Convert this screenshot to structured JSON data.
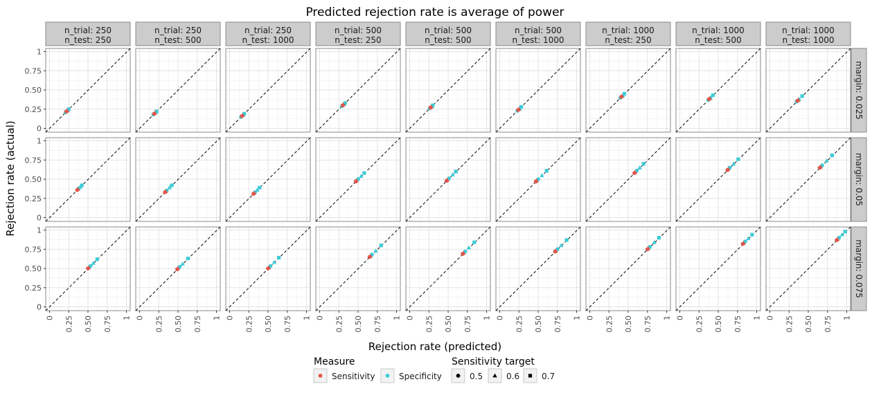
{
  "chart_data": {
    "type": "scatter",
    "title": "Predicted rejection rate is average of power",
    "xlabel": "Rejection rate (predicted)",
    "ylabel": "Rejection rate (actual)",
    "xlim": [
      0,
      1
    ],
    "ylim": [
      0,
      1
    ],
    "x_ticks": [
      "0",
      "0.25",
      "0.50",
      "0.75",
      "1"
    ],
    "y_ticks": [
      "0",
      "0.25",
      "0.50",
      "0.75",
      "1"
    ],
    "grid": true,
    "reference_line": "y = x (dashed)",
    "facet_columns": [
      [
        "n_trial: 250",
        "n_test: 250"
      ],
      [
        "n_trial: 250",
        "n_test: 500"
      ],
      [
        "n_trial: 250",
        "n_test: 1000"
      ],
      [
        "n_trial: 500",
        "n_test: 250"
      ],
      [
        "n_trial: 500",
        "n_test: 500"
      ],
      [
        "n_trial: 500",
        "n_test: 1000"
      ],
      [
        "n_trial: 1000",
        "n_test: 250"
      ],
      [
        "n_trial: 1000",
        "n_test: 500"
      ],
      [
        "n_trial: 1000",
        "n_test: 1000"
      ]
    ],
    "facet_rows": [
      "margin: 0.025",
      "margin: 0.05",
      "margin: 0.075"
    ],
    "legend": {
      "placement": "bottom",
      "measure_title": "Measure",
      "measure_items": [
        {
          "label": "Sensitivity",
          "color": "#E0564B"
        },
        {
          "label": "Specificity",
          "color": "#3DCCD8"
        }
      ],
      "target_title": "Sensitivity target",
      "target_items": [
        {
          "label": "0.5",
          "shape": "circle"
        },
        {
          "label": "0.6",
          "shape": "triangle"
        },
        {
          "label": "0.7",
          "shape": "square"
        }
      ]
    },
    "panels": [
      [
        {
          "sens": [
            0.22,
            0.23
          ],
          "spec": [
            0.21,
            0.24,
            0.25
          ]
        },
        {
          "sens": [
            0.19,
            0.2
          ],
          "spec": [
            0.18,
            0.21,
            0.22
          ]
        },
        {
          "sens": [
            0.16,
            0.17
          ],
          "spec": [
            0.15,
            0.18,
            0.19
          ]
        },
        {
          "sens": [
            0.3,
            0.31
          ],
          "spec": [
            0.29,
            0.32,
            0.33
          ]
        },
        {
          "sens": [
            0.27,
            0.28
          ],
          "spec": [
            0.26,
            0.29,
            0.3
          ]
        },
        {
          "sens": [
            0.24,
            0.25
          ],
          "spec": [
            0.23,
            0.26,
            0.28
          ]
        },
        {
          "sens": [
            0.41,
            0.42
          ],
          "spec": [
            0.4,
            0.43,
            0.45
          ]
        },
        {
          "sens": [
            0.38,
            0.39
          ],
          "spec": [
            0.37,
            0.4,
            0.43
          ]
        },
        {
          "sens": [
            0.36,
            0.37
          ],
          "spec": [
            0.35,
            0.38,
            0.42
          ]
        }
      ],
      [
        {
          "sens": [
            0.36,
            0.37
          ],
          "spec": [
            0.38,
            0.4,
            0.42
          ]
        },
        {
          "sens": [
            0.33,
            0.34
          ],
          "spec": [
            0.35,
            0.39,
            0.42
          ]
        },
        {
          "sens": [
            0.31,
            0.32
          ],
          "spec": [
            0.33,
            0.36,
            0.39
          ]
        },
        {
          "sens": [
            0.47,
            0.48
          ],
          "spec": [
            0.5,
            0.54,
            0.58
          ]
        },
        {
          "sens": [
            0.48,
            0.49
          ],
          "spec": [
            0.51,
            0.56,
            0.6
          ]
        },
        {
          "sens": [
            0.47,
            0.48
          ],
          "spec": [
            0.5,
            0.55,
            0.61
          ]
        },
        {
          "sens": [
            0.58,
            0.59
          ],
          "spec": [
            0.61,
            0.65,
            0.7
          ]
        },
        {
          "sens": [
            0.62,
            0.63
          ],
          "spec": [
            0.65,
            0.7,
            0.76
          ]
        },
        {
          "sens": [
            0.65,
            0.66
          ],
          "spec": [
            0.68,
            0.74,
            0.81
          ]
        }
      ],
      [
        {
          "sens": [
            0.5,
            0.51
          ],
          "spec": [
            0.53,
            0.57,
            0.62
          ]
        },
        {
          "sens": [
            0.49,
            0.5
          ],
          "spec": [
            0.52,
            0.56,
            0.63
          ]
        },
        {
          "sens": [
            0.5,
            0.51
          ],
          "spec": [
            0.53,
            0.58,
            0.64
          ]
        },
        {
          "sens": [
            0.65,
            0.66
          ],
          "spec": [
            0.68,
            0.73,
            0.8
          ]
        },
        {
          "sens": [
            0.69,
            0.7
          ],
          "spec": [
            0.72,
            0.77,
            0.84
          ]
        },
        {
          "sens": [
            0.72,
            0.73
          ],
          "spec": [
            0.75,
            0.8,
            0.87
          ]
        },
        {
          "sens": [
            0.75,
            0.76
          ],
          "spec": [
            0.78,
            0.84,
            0.9
          ]
        },
        {
          "sens": [
            0.82,
            0.83
          ],
          "spec": [
            0.85,
            0.89,
            0.94
          ]
        },
        {
          "sens": [
            0.87,
            0.88
          ],
          "spec": [
            0.9,
            0.94,
            0.98
          ]
        }
      ]
    ]
  }
}
